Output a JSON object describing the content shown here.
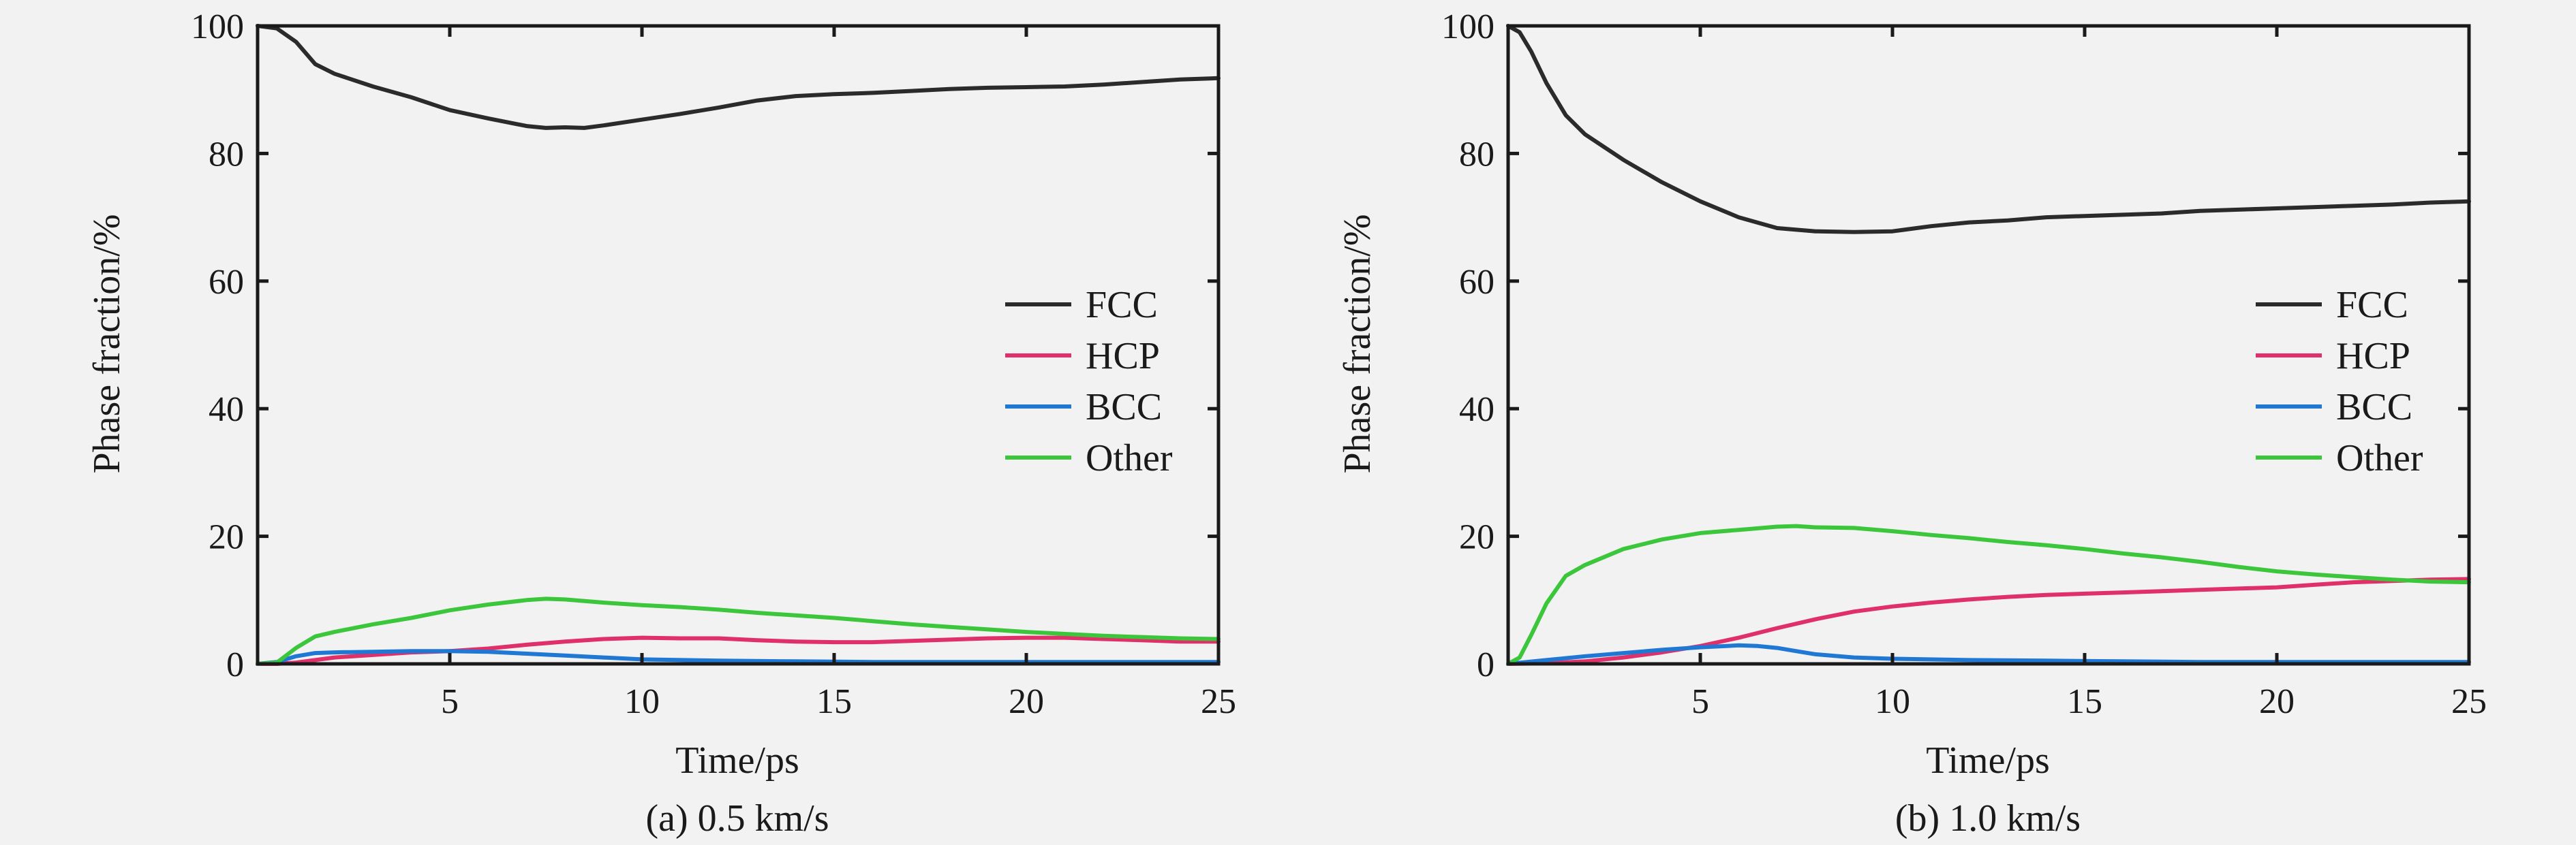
{
  "figure": {
    "colors": {
      "background": "#f2f2f2",
      "axes": "#1a1a1a",
      "FCC": "#2b2b2b",
      "HCP": "#e0306a",
      "BCC": "#1f78d4",
      "Other": "#3cc63c"
    }
  },
  "chart_data": [
    {
      "type": "line",
      "caption": "(a) 0.5 km/s",
      "xlabel": "Time/ps",
      "ylabel": "Phase fraction/%",
      "xlim": [
        0,
        25
      ],
      "ylim": [
        0,
        100
      ],
      "xticks": [
        5,
        10,
        15,
        20,
        25
      ],
      "yticks": [
        0,
        20,
        40,
        60,
        80,
        100
      ],
      "grid": false,
      "legend_position": "center-right",
      "series": [
        {
          "name": "FCC",
          "x": [
            0,
            0.5,
            1,
            1.5,
            2,
            3,
            4,
            5,
            6,
            7,
            7.5,
            8,
            8.5,
            9,
            10,
            11,
            12,
            13,
            14,
            15,
            16,
            17,
            18,
            19,
            20,
            21,
            22,
            23,
            24,
            25
          ],
          "y": [
            100,
            99.6,
            97.5,
            94,
            92.5,
            90.5,
            88.8,
            86.8,
            85.5,
            84.3,
            84.0,
            84.1,
            84.0,
            84.4,
            85.3,
            86.2,
            87.2,
            88.3,
            89.0,
            89.3,
            89.5,
            89.8,
            90.1,
            90.3,
            90.4,
            90.5,
            90.8,
            91.2,
            91.6,
            91.8
          ]
        },
        {
          "name": "HCP",
          "x": [
            0,
            0.5,
            1,
            1.5,
            2,
            3,
            4,
            5,
            6,
            7,
            8,
            9,
            10,
            11,
            12,
            13,
            14,
            15,
            16,
            17,
            18,
            19,
            20,
            21,
            22,
            23,
            24,
            25
          ],
          "y": [
            0,
            0,
            0.2,
            0.6,
            1.0,
            1.4,
            1.8,
            2.0,
            2.4,
            3.0,
            3.5,
            3.9,
            4.1,
            4.0,
            4.0,
            3.7,
            3.5,
            3.4,
            3.4,
            3.6,
            3.8,
            4.0,
            4.1,
            4.1,
            3.9,
            3.7,
            3.5,
            3.5
          ]
        },
        {
          "name": "BCC",
          "x": [
            0,
            0.5,
            1,
            1.5,
            2,
            3,
            4,
            5,
            6,
            7,
            8,
            9,
            10,
            12,
            14,
            16,
            18,
            20,
            22,
            25
          ],
          "y": [
            0,
            0.3,
            1.2,
            1.7,
            1.8,
            1.9,
            2.0,
            2.0,
            1.9,
            1.6,
            1.3,
            1.0,
            0.7,
            0.5,
            0.4,
            0.3,
            0.3,
            0.3,
            0.3,
            0.3
          ]
        },
        {
          "name": "Other",
          "x": [
            0,
            0.5,
            1,
            1.5,
            2,
            3,
            4,
            5,
            6,
            7,
            7.5,
            8,
            9,
            10,
            11,
            12,
            13,
            14,
            15,
            16,
            17,
            18,
            19,
            20,
            21,
            22,
            23,
            24,
            25
          ],
          "y": [
            0,
            0.2,
            2.5,
            4.3,
            5.0,
            6.2,
            7.2,
            8.4,
            9.3,
            10.0,
            10.2,
            10.1,
            9.6,
            9.2,
            8.9,
            8.5,
            8.0,
            7.6,
            7.2,
            6.7,
            6.2,
            5.8,
            5.4,
            5.0,
            4.7,
            4.4,
            4.2,
            4.0,
            3.9
          ]
        }
      ]
    },
    {
      "type": "line",
      "caption": "(b) 1.0 km/s",
      "xlabel": "Time/ps",
      "ylabel": "Phase fraction/%",
      "xlim": [
        0,
        25
      ],
      "ylim": [
        0,
        100
      ],
      "xticks": [
        5,
        10,
        15,
        20,
        25
      ],
      "yticks": [
        0,
        20,
        40,
        60,
        80,
        100
      ],
      "grid": false,
      "legend_position": "center-right",
      "series": [
        {
          "name": "FCC",
          "x": [
            0,
            0.3,
            0.6,
            1,
            1.5,
            2,
            3,
            4,
            5,
            6,
            7,
            8,
            9,
            10,
            11,
            12,
            13,
            14,
            15,
            16,
            17,
            18,
            19,
            20,
            21,
            22,
            23,
            24,
            25
          ],
          "y": [
            100,
            99,
            96,
            91,
            86,
            83,
            79,
            75.5,
            72.5,
            70,
            68.3,
            67.8,
            67.7,
            67.8,
            68.6,
            69.2,
            69.5,
            70,
            70.2,
            70.4,
            70.6,
            71,
            71.2,
            71.4,
            71.6,
            71.8,
            72,
            72.3,
            72.5
          ]
        },
        {
          "name": "HCP",
          "x": [
            0,
            1,
            2,
            3,
            4,
            5,
            6,
            7,
            8,
            9,
            10,
            11,
            12,
            13,
            14,
            15,
            16,
            17,
            18,
            19,
            20,
            21,
            22,
            23,
            24,
            25
          ],
          "y": [
            0,
            0.1,
            0.4,
            1.0,
            1.8,
            2.8,
            4.1,
            5.6,
            7.0,
            8.2,
            9.0,
            9.6,
            10.1,
            10.5,
            10.8,
            11.0,
            11.2,
            11.4,
            11.6,
            11.8,
            12.0,
            12.4,
            12.8,
            13.0,
            13.2,
            13.3
          ]
        },
        {
          "name": "BCC",
          "x": [
            0,
            1,
            2,
            3,
            4,
            5,
            6,
            6.5,
            7,
            7.5,
            8,
            9,
            10,
            12,
            14,
            16,
            18,
            20,
            22,
            25
          ],
          "y": [
            0,
            0.6,
            1.2,
            1.7,
            2.2,
            2.6,
            2.9,
            2.8,
            2.5,
            2.0,
            1.5,
            1.0,
            0.8,
            0.6,
            0.5,
            0.4,
            0.3,
            0.3,
            0.3,
            0.3
          ]
        },
        {
          "name": "Other",
          "x": [
            0,
            0.3,
            0.6,
            1,
            1.5,
            2,
            3,
            4,
            5,
            6,
            7,
            7.5,
            8,
            9,
            10,
            11,
            12,
            13,
            14,
            15,
            16,
            17,
            18,
            19,
            20,
            21,
            22,
            23,
            24,
            25
          ],
          "y": [
            0,
            1.0,
            4.5,
            9.5,
            13.8,
            15.5,
            18.0,
            19.5,
            20.5,
            21.0,
            21.5,
            21.6,
            21.4,
            21.3,
            20.8,
            20.2,
            19.7,
            19.1,
            18.6,
            18.0,
            17.3,
            16.7,
            16.0,
            15.2,
            14.5,
            14.0,
            13.6,
            13.2,
            12.9,
            12.8
          ]
        }
      ]
    }
  ]
}
